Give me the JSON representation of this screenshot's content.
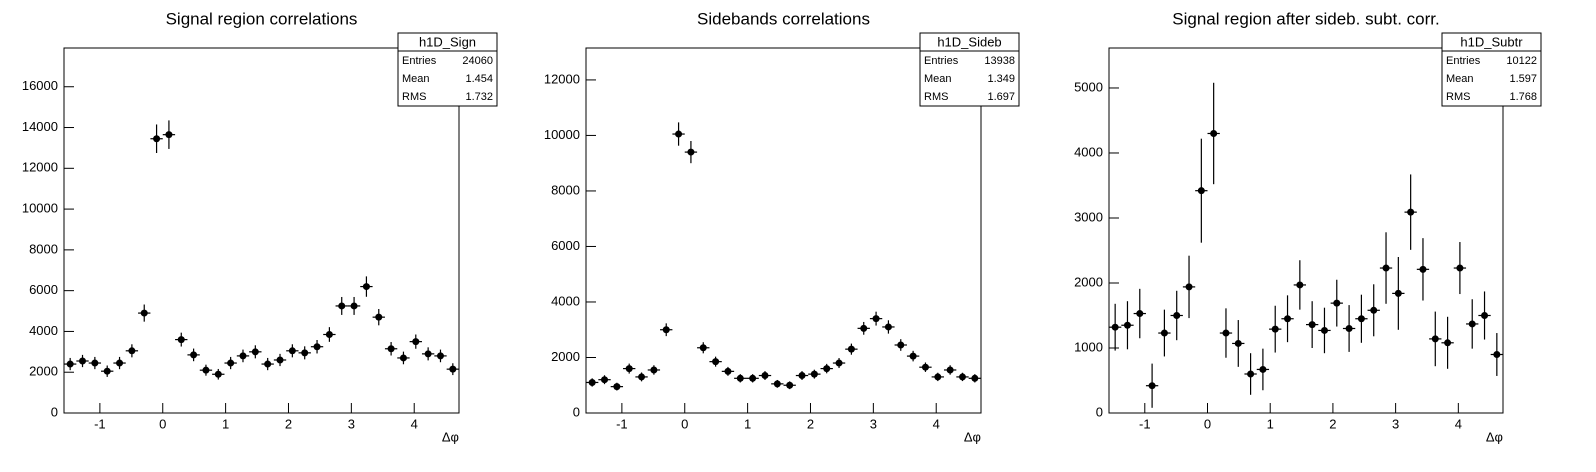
{
  "chart_data": [
    {
      "type": "histogram",
      "title": "Signal region correlations",
      "xlabel": "Δφ",
      "bins": [
        -1.5708,
        -1.3745,
        -1.1781,
        -0.9817,
        -0.7854,
        -0.589,
        -0.3927,
        -0.1963,
        0,
        0.1963,
        0.3927,
        0.589,
        0.7854,
        0.9817,
        1.1781,
        1.3745,
        1.5708,
        1.7671,
        1.9635,
        2.1598,
        2.3562,
        2.5525,
        2.7489,
        2.9452,
        3.1416,
        3.3379,
        3.5343,
        3.7306,
        3.927,
        4.1233,
        4.3197,
        4.516,
        4.7124
      ],
      "values": [
        2400,
        2550,
        2450,
        2050,
        2450,
        3050,
        4900,
        13450,
        13650,
        3600,
        2850,
        2100,
        1900,
        2450,
        2800,
        3000,
        2400,
        2600,
        3050,
        2950,
        3250,
        3850,
        5250,
        5250,
        6200,
        4700,
        3150,
        2700,
        3500,
        2900,
        2800,
        2150
      ],
      "errors": [
        300,
        300,
        300,
        280,
        300,
        320,
        420,
        700,
        700,
        340,
        310,
        270,
        260,
        300,
        310,
        320,
        300,
        300,
        320,
        320,
        330,
        360,
        440,
        440,
        500,
        400,
        330,
        310,
        350,
        320,
        310,
        290
      ],
      "color": "#000000",
      "xlim": [
        -1.5708,
        4.7124
      ],
      "xticks": [
        -1,
        0,
        1,
        2,
        3,
        4
      ],
      "ylim": [
        0,
        17900
      ],
      "yticks": [
        0,
        2000,
        4000,
        6000,
        8000,
        10000,
        12000,
        14000,
        16000
      ],
      "stats": {
        "title": "h1D_Sign",
        "rows": [
          {
            "label": "Entries",
            "value": 24060
          },
          {
            "label": "Mean",
            "value": 1.454
          },
          {
            "label": "RMS",
            "value": 1.732
          }
        ]
      }
    },
    {
      "type": "histogram",
      "title": "Sidebands correlations",
      "xlabel": "Δφ",
      "bins": [
        -1.5708,
        -1.3745,
        -1.1781,
        -0.9817,
        -0.7854,
        -0.589,
        -0.3927,
        -0.1963,
        0,
        0.1963,
        0.3927,
        0.589,
        0.7854,
        0.9817,
        1.1781,
        1.3745,
        1.5708,
        1.7671,
        1.9635,
        2.1598,
        2.3562,
        2.5525,
        2.7489,
        2.9452,
        3.1416,
        3.3379,
        3.5343,
        3.7306,
        3.927,
        4.1233,
        4.3197,
        4.516,
        4.7124
      ],
      "values": [
        1100,
        1200,
        950,
        1600,
        1300,
        1550,
        3000,
        10050,
        9400,
        2350,
        1850,
        1500,
        1250,
        1250,
        1350,
        1050,
        1000,
        1350,
        1400,
        1600,
        1800,
        2300,
        3050,
        3400,
        3100,
        2450,
        2050,
        1650,
        1300,
        1550,
        1300,
        1250
      ],
      "errors": [
        150,
        160,
        140,
        180,
        160,
        170,
        230,
        420,
        400,
        200,
        180,
        160,
        150,
        150,
        160,
        140,
        140,
        160,
        160,
        170,
        180,
        200,
        230,
        250,
        240,
        210,
        190,
        170,
        150,
        170,
        150,
        150
      ],
      "color": "#000000",
      "xlim": [
        -1.5708,
        4.7124
      ],
      "xticks": [
        -1,
        0,
        1,
        2,
        3,
        4
      ],
      "ylim": [
        0,
        13150
      ],
      "yticks": [
        0,
        2000,
        4000,
        6000,
        8000,
        10000,
        12000
      ],
      "stats": {
        "title": "h1D_Sideb",
        "rows": [
          {
            "label": "Entries",
            "value": 13938
          },
          {
            "label": "Mean",
            "value": 1.349
          },
          {
            "label": "RMS",
            "value": 1.697
          }
        ]
      }
    },
    {
      "type": "histogram",
      "title": "Signal region after sideb. subt. corr.",
      "xlabel": "Δφ",
      "bins": [
        -1.5708,
        -1.3745,
        -1.1781,
        -0.9817,
        -0.7854,
        -0.589,
        -0.3927,
        -0.1963,
        0,
        0.1963,
        0.3927,
        0.589,
        0.7854,
        0.9817,
        1.1781,
        1.3745,
        1.5708,
        1.7671,
        1.9635,
        2.1598,
        2.3562,
        2.5525,
        2.7489,
        2.9452,
        3.1416,
        3.3379,
        3.5343,
        3.7306,
        3.927,
        4.1233,
        4.3197,
        4.516,
        4.7124
      ],
      "values": [
        1320,
        1350,
        1530,
        420,
        1230,
        1500,
        1940,
        3420,
        4300,
        1230,
        1070,
        600,
        670,
        1290,
        1450,
        1970,
        1360,
        1270,
        1690,
        1300,
        1450,
        1580,
        2230,
        1840,
        3090,
        2210,
        1140,
        1080,
        2230,
        1370,
        1500,
        900
      ],
      "errors": [
        360,
        370,
        380,
        340,
        360,
        380,
        480,
        800,
        780,
        380,
        360,
        320,
        320,
        360,
        360,
        380,
        360,
        350,
        360,
        360,
        370,
        400,
        550,
        560,
        580,
        480,
        420,
        400,
        400,
        380,
        370,
        330
      ],
      "color": "#000000",
      "xlim": [
        -1.5708,
        4.7124
      ],
      "xticks": [
        -1,
        0,
        1,
        2,
        3,
        4
      ],
      "ylim": [
        0,
        5615
      ],
      "yticks": [
        0,
        1000,
        2000,
        3000,
        4000,
        5000
      ],
      "stats": {
        "title": "h1D_Subtr",
        "rows": [
          {
            "label": "Entries",
            "value": 10122
          },
          {
            "label": "Mean",
            "value": 1.597
          },
          {
            "label": "RMS",
            "value": 1.768
          }
        ]
      }
    }
  ]
}
